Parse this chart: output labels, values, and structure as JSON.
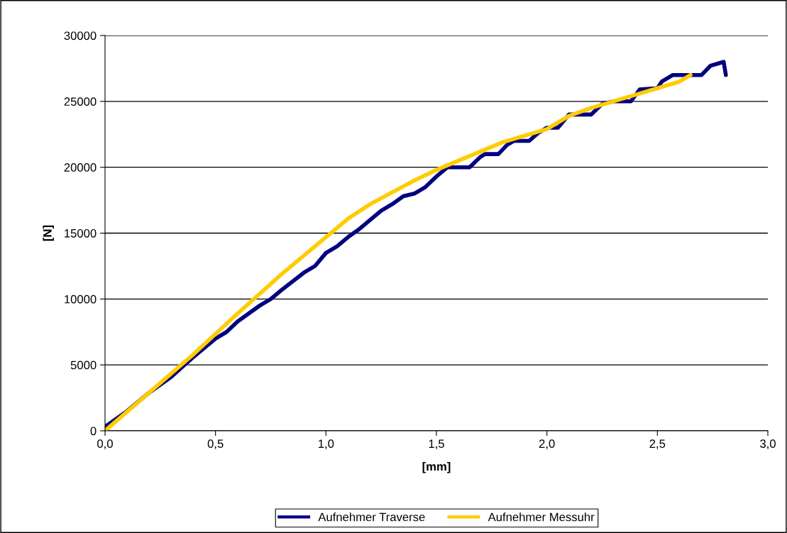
{
  "chart_data": {
    "type": "line",
    "xlabel": "[mm]",
    "ylabel": "[N]",
    "xlim": [
      0,
      3
    ],
    "xticks": [
      {
        "value": 0,
        "label": "0,0"
      },
      {
        "value": 0.5,
        "label": "0,5"
      },
      {
        "value": 1,
        "label": "1,0"
      },
      {
        "value": 1.5,
        "label": "1,5"
      },
      {
        "value": 2,
        "label": "2,0"
      },
      {
        "value": 2.5,
        "label": "2,5"
      },
      {
        "value": 3,
        "label": "3,0"
      }
    ],
    "ylim": [
      0,
      30000
    ],
    "yticks": [
      0,
      5000,
      10000,
      15000,
      20000,
      25000,
      30000
    ],
    "grid": "y",
    "legend": "bottom",
    "marker": "none",
    "line_style": "solid",
    "series": [
      {
        "name": "Aufnehmer Traverse",
        "color": "#000080",
        "x": [
          0,
          0.1,
          0.2,
          0.3,
          0.4,
          0.5,
          0.55,
          0.6,
          0.7,
          0.75,
          0.8,
          0.9,
          0.95,
          1.0,
          1.05,
          1.1,
          1.15,
          1.2,
          1.25,
          1.3,
          1.35,
          1.4,
          1.45,
          1.5,
          1.55,
          1.65,
          1.7,
          1.72,
          1.78,
          1.82,
          1.85,
          1.92,
          1.96,
          2.0,
          2.05,
          2.08,
          2.1,
          2.2,
          2.25,
          2.3,
          2.38,
          2.42,
          2.5,
          2.52,
          2.57,
          2.7,
          2.74,
          2.78,
          2.8,
          2.81
        ],
        "values": [
          300,
          1500,
          2900,
          4100,
          5600,
          7000,
          7500,
          8300,
          9500,
          10000,
          10700,
          12000,
          12500,
          13500,
          14000,
          14700,
          15300,
          16000,
          16700,
          17200,
          17800,
          18000,
          18500,
          19300,
          20000,
          20000,
          20800,
          21000,
          21000,
          21700,
          22000,
          22000,
          22600,
          23000,
          23000,
          23600,
          24000,
          24000,
          24800,
          25000,
          25000,
          25900,
          26000,
          26500,
          27000,
          27000,
          27700,
          27900,
          28000,
          27000
        ]
      },
      {
        "name": "Aufnehmer Messuhr",
        "color": "#ffcc00",
        "x": [
          0,
          0.2,
          0.4,
          0.6,
          0.8,
          1.0,
          1.1,
          1.2,
          1.4,
          1.5,
          1.6,
          1.8,
          2.0,
          2.1,
          2.2,
          2.4,
          2.6,
          2.65
        ],
        "values": [
          0,
          2900,
          5800,
          8900,
          11900,
          14700,
          16100,
          17200,
          19000,
          19800,
          20500,
          21900,
          22900,
          23900,
          24500,
          25500,
          26500,
          27000
        ]
      }
    ]
  }
}
